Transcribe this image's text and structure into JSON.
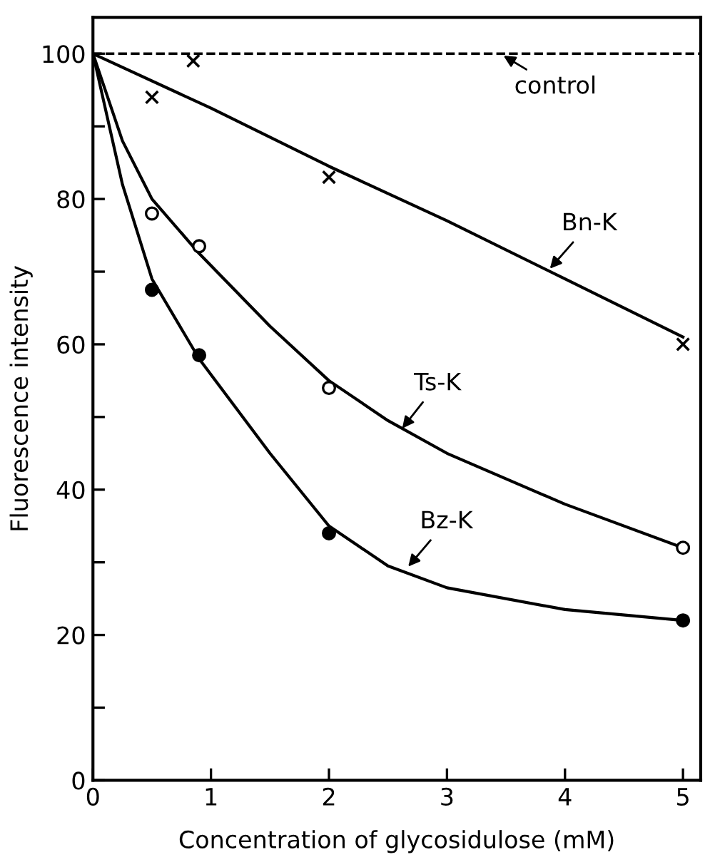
{
  "chart_data": {
    "type": "line",
    "xlabel": "Concentration of glycosidulose (mM)",
    "ylabel": "Fluorescence intensity",
    "xlim": [
      0,
      5.15
    ],
    "ylim": [
      0,
      105
    ],
    "xticks": [
      0,
      1,
      2,
      3,
      4,
      5
    ],
    "yticks": [
      0,
      {
        "value": 10,
        "label": null
      },
      20,
      {
        "value": 30,
        "label": null
      },
      40,
      {
        "value": 50,
        "label": null
      },
      60,
      {
        "value": 70,
        "label": null
      },
      80,
      {
        "value": 90,
        "label": null
      },
      100
    ],
    "grid": false,
    "legend": false,
    "series": [
      {
        "color": "#000000",
        "marker": "none",
        "x": [
          0,
          1,
          2,
          3,
          4,
          5
        ],
        "values": [
          100,
          92.5,
          84.5,
          77,
          69,
          61
        ]
      },
      {
        "color": "#000000",
        "marker": "none",
        "x": [
          0,
          0.25,
          0.5,
          0.9,
          1.5,
          2,
          2.5,
          3,
          4,
          5
        ],
        "values": [
          100,
          88,
          80,
          72.5,
          62.5,
          55,
          49.5,
          45,
          38,
          32
        ]
      },
      {
        "color": "#000000",
        "marker": "none",
        "x": [
          0,
          0.25,
          0.5,
          0.9,
          1.5,
          2,
          2.5,
          3,
          4,
          5
        ],
        "values": [
          100,
          82,
          69,
          58,
          45,
          35,
          29.5,
          26.5,
          23.5,
          22
        ]
      },
      {
        "type": "scatter",
        "color": "#000000",
        "marker": "cross",
        "x": [
          0.5,
          0.85,
          2,
          5
        ],
        "values": [
          94,
          99,
          83,
          60
        ]
      },
      {
        "type": "scatter",
        "color": "#ffffff",
        "marker": "circle",
        "x": [
          0.5,
          0.9,
          2,
          5
        ],
        "values": [
          78,
          73.5,
          54,
          32
        ]
      },
      {
        "type": "scatter",
        "color": "#000000",
        "marker": "circle",
        "x": [
          0.5,
          0.9,
          2,
          5
        ],
        "values": [
          67.5,
          58.5,
          34,
          22
        ]
      }
    ],
    "ref_lines": [
      {
        "axis": "y",
        "value": 100,
        "line_style": "dashed",
        "color": "#000000"
      }
    ],
    "annotations": [
      {
        "text": "control",
        "x": 3.45,
        "y": 100
      },
      {
        "text": "Bn-K",
        "x": 3.85,
        "y": 70
      },
      {
        "text": "Ts-K",
        "x": 2.6,
        "y": 48
      },
      {
        "text": "Bz-K",
        "x": 2.65,
        "y": 29
      }
    ]
  }
}
